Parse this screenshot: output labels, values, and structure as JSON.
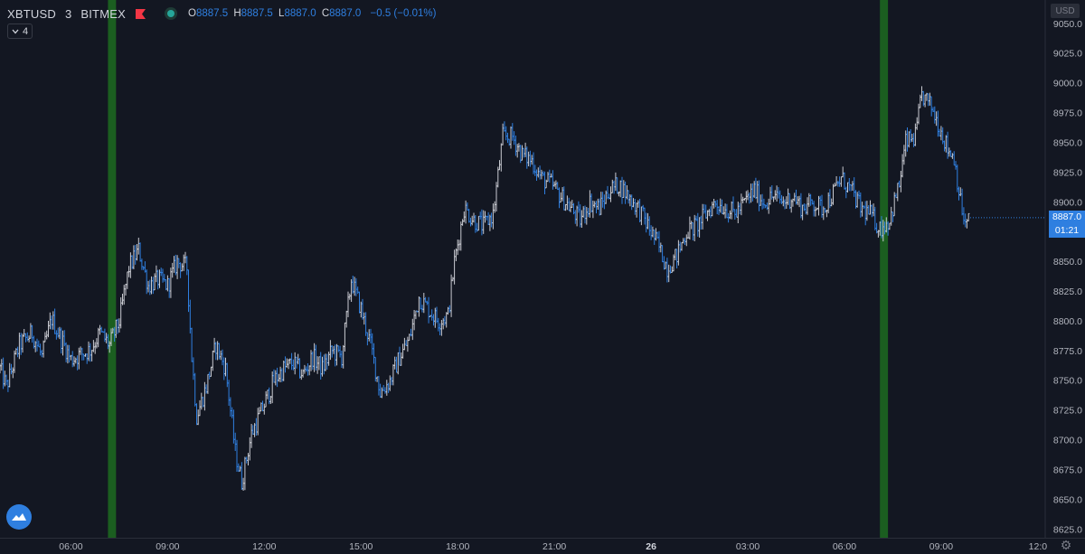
{
  "header": {
    "symbol": "XBTUSD",
    "interval": "3",
    "exchange": "BITMEX",
    "open_key": "O",
    "open": "8887.5",
    "high_key": "H",
    "high": "8887.5",
    "low_key": "L",
    "low": "8887.0",
    "close_key": "C",
    "close": "8887.0",
    "change": "−0.5 (−0.01%)",
    "collapse_count": "4"
  },
  "currency_label": "USD",
  "last_price_label": "8887.0",
  "countdown_label": "01:21",
  "colors": {
    "background": "#131722",
    "up": "#c8cad1",
    "down": "#2f7fe0",
    "highlight": "#1b5e20",
    "flag": "#f23645"
  },
  "chart_data": {
    "type": "ohlc",
    "series_name": "XBTUSD",
    "interval_minutes": 3,
    "y_ticks": [
      "9050.0",
      "9025.0",
      "9000.0",
      "8975.0",
      "8950.0",
      "8925.0",
      "8900.0",
      "8875.0",
      "8850.0",
      "8825.0",
      "8800.0",
      "8775.0",
      "8750.0",
      "8725.0",
      "8700.0",
      "8675.0",
      "8650.0",
      "8625.0"
    ],
    "ylim": [
      8618,
      9070
    ],
    "x_ticks": [
      {
        "label": "06:00",
        "t": 6.0,
        "bold": false
      },
      {
        "label": "09:00",
        "t": 9.0,
        "bold": false
      },
      {
        "label": "12:00",
        "t": 12.0,
        "bold": false
      },
      {
        "label": "15:00",
        "t": 15.0,
        "bold": false
      },
      {
        "label": "18:00",
        "t": 18.0,
        "bold": false
      },
      {
        "label": "21:00",
        "t": 21.0,
        "bold": false
      },
      {
        "label": "26",
        "t": 24.0,
        "bold": true
      },
      {
        "label": "03:00",
        "t": 27.0,
        "bold": false
      },
      {
        "label": "06:00",
        "t": 30.0,
        "bold": false
      },
      {
        "label": "09:00",
        "t": 33.0,
        "bold": false
      },
      {
        "label": "12:0",
        "t": 36.0,
        "bold": false
      }
    ],
    "xlim": [
      3.8,
      36.2
    ],
    "highlight_bands": [
      {
        "start": 7.15,
        "end": 7.4
      },
      {
        "start": 31.1,
        "end": 31.35
      }
    ],
    "grid": false,
    "price_path": [
      [
        3.8,
        8760
      ],
      [
        4.0,
        8745
      ],
      [
        4.4,
        8780
      ],
      [
        4.8,
        8790
      ],
      [
        5.1,
        8770
      ],
      [
        5.4,
        8802
      ],
      [
        5.7,
        8785
      ],
      [
        6.0,
        8768
      ],
      [
        6.3,
        8772
      ],
      [
        6.6,
        8776
      ],
      [
        6.9,
        8790
      ],
      [
        7.2,
        8780
      ],
      [
        7.5,
        8800
      ],
      [
        7.8,
        8845
      ],
      [
        8.1,
        8860
      ],
      [
        8.4,
        8830
      ],
      [
        8.7,
        8835
      ],
      [
        9.0,
        8830
      ],
      [
        9.3,
        8850
      ],
      [
        9.6,
        8845
      ],
      [
        9.75,
        8770
      ],
      [
        9.9,
        8720
      ],
      [
        10.2,
        8745
      ],
      [
        10.5,
        8780
      ],
      [
        10.8,
        8760
      ],
      [
        11.1,
        8690
      ],
      [
        11.3,
        8665
      ],
      [
        11.6,
        8705
      ],
      [
        12.0,
        8730
      ],
      [
        12.3,
        8750
      ],
      [
        12.6,
        8760
      ],
      [
        12.9,
        8765
      ],
      [
        13.2,
        8755
      ],
      [
        13.5,
        8770
      ],
      [
        13.8,
        8760
      ],
      [
        14.1,
        8775
      ],
      [
        14.4,
        8770
      ],
      [
        14.7,
        8835
      ],
      [
        15.0,
        8810
      ],
      [
        15.3,
        8780
      ],
      [
        15.6,
        8740
      ],
      [
        15.9,
        8750
      ],
      [
        16.2,
        8770
      ],
      [
        16.5,
        8785
      ],
      [
        16.8,
        8820
      ],
      [
        17.1,
        8810
      ],
      [
        17.4,
        8800
      ],
      [
        17.7,
        8805
      ],
      [
        17.9,
        8850
      ],
      [
        18.2,
        8895
      ],
      [
        18.5,
        8885
      ],
      [
        18.8,
        8880
      ],
      [
        19.1,
        8890
      ],
      [
        19.4,
        8955
      ],
      [
        19.7,
        8955
      ],
      [
        20.0,
        8940
      ],
      [
        20.3,
        8935
      ],
      [
        20.6,
        8920
      ],
      [
        20.9,
        8915
      ],
      [
        21.2,
        8905
      ],
      [
        21.5,
        8895
      ],
      [
        21.8,
        8885
      ],
      [
        22.1,
        8900
      ],
      [
        22.4,
        8895
      ],
      [
        22.7,
        8910
      ],
      [
        23.0,
        8915
      ],
      [
        23.3,
        8905
      ],
      [
        23.6,
        8895
      ],
      [
        23.9,
        8880
      ],
      [
        24.2,
        8865
      ],
      [
        24.5,
        8845
      ],
      [
        24.8,
        8855
      ],
      [
        25.1,
        8875
      ],
      [
        25.4,
        8880
      ],
      [
        25.7,
        8890
      ],
      [
        26.0,
        8900
      ],
      [
        26.3,
        8895
      ],
      [
        26.6,
        8890
      ],
      [
        26.9,
        8900
      ],
      [
        27.2,
        8910
      ],
      [
        27.5,
        8900
      ],
      [
        27.8,
        8905
      ],
      [
        28.1,
        8900
      ],
      [
        28.4,
        8905
      ],
      [
        28.7,
        8895
      ],
      [
        29.0,
        8900
      ],
      [
        29.3,
        8895
      ],
      [
        29.6,
        8905
      ],
      [
        29.9,
        8920
      ],
      [
        30.2,
        8910
      ],
      [
        30.5,
        8895
      ],
      [
        30.8,
        8890
      ],
      [
        31.1,
        8878
      ],
      [
        31.4,
        8885
      ],
      [
        31.7,
        8915
      ],
      [
        31.9,
        8950
      ],
      [
        32.2,
        8955
      ],
      [
        32.4,
        8990
      ],
      [
        32.7,
        8980
      ],
      [
        33.0,
        8960
      ],
      [
        33.2,
        8945
      ],
      [
        33.4,
        8938
      ],
      [
        33.6,
        8900
      ],
      [
        33.75,
        8880
      ],
      [
        33.9,
        8887
      ]
    ]
  }
}
